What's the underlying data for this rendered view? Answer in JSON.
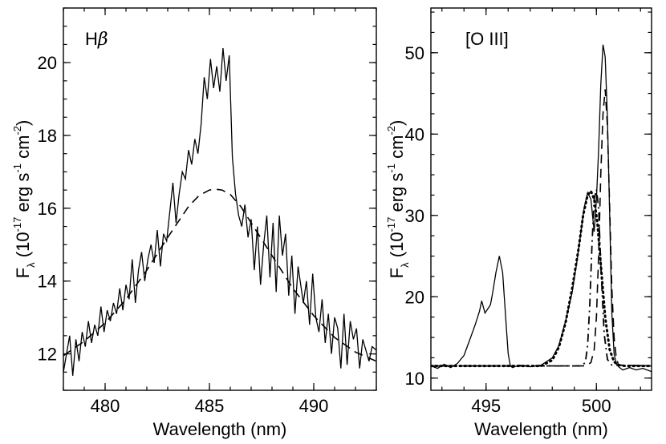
{
  "chart_data": [
    {
      "type": "line",
      "annotation": "Hβ",
      "annotation_parts": [
        "H",
        "β"
      ],
      "xlabel": "Wavelength (nm)",
      "ylabel": {
        "base": "F",
        "sub": "λ",
        "pre": " (10",
        "exp1": "-17",
        "mid1": " erg s",
        "exp2": "-1",
        "mid2": " cm",
        "exp3": "-2",
        "post": ")"
      },
      "xlim": [
        478,
        493
      ],
      "ylim": [
        11,
        21.5
      ],
      "xticks": [
        480,
        485,
        490
      ],
      "yticks": [
        12,
        14,
        16,
        18,
        20
      ],
      "grid": false,
      "series": [
        {
          "style": "solid",
          "x": [
            478.0,
            478.15,
            478.3,
            478.45,
            478.6,
            478.75,
            478.9,
            479.05,
            479.2,
            479.35,
            479.5,
            479.65,
            479.8,
            479.95,
            480.1,
            480.25,
            480.4,
            480.55,
            480.7,
            480.85,
            481.0,
            481.15,
            481.3,
            481.45,
            481.6,
            481.75,
            481.9,
            482.05,
            482.2,
            482.35,
            482.5,
            482.65,
            482.8,
            482.95,
            483.1,
            483.25,
            483.4,
            483.55,
            483.7,
            483.85,
            484.0,
            484.15,
            484.3,
            484.45,
            484.6,
            484.75,
            484.9,
            485.05,
            485.2,
            485.35,
            485.5,
            485.65,
            485.8,
            485.95,
            486.1,
            486.25,
            486.4,
            486.55,
            486.7,
            486.85,
            487.0,
            487.15,
            487.3,
            487.45,
            487.6,
            487.75,
            487.9,
            488.05,
            488.2,
            488.35,
            488.5,
            488.65,
            488.8,
            488.95,
            489.1,
            489.25,
            489.5,
            489.65,
            489.8,
            489.95,
            490.1,
            490.25,
            490.4,
            490.55,
            490.7,
            490.85,
            491.0,
            491.15,
            491.3,
            491.45,
            491.6,
            491.75,
            491.9,
            492.05,
            492.2,
            492.35,
            492.5,
            492.65,
            492.8,
            493.0
          ],
          "y": [
            11.5,
            12.0,
            12.5,
            11.4,
            12.4,
            11.8,
            12.6,
            12.2,
            12.9,
            12.3,
            12.8,
            12.5,
            13.3,
            12.6,
            13.2,
            12.9,
            13.4,
            13.1,
            13.8,
            13.2,
            13.9,
            13.5,
            14.6,
            13.4,
            14.3,
            14.8,
            14.0,
            14.6,
            15.0,
            14.5,
            15.4,
            14.4,
            15.3,
            15.1,
            15.9,
            16.7,
            15.6,
            16.4,
            17.0,
            16.8,
            17.6,
            17.2,
            17.9,
            17.5,
            18.3,
            19.6,
            19.0,
            20.1,
            19.3,
            19.9,
            19.2,
            20.4,
            19.5,
            20.2,
            17.4,
            16.4,
            15.8,
            15.5,
            16.1,
            15.2,
            15.7,
            14.3,
            15.5,
            13.9,
            15.0,
            15.8,
            14.1,
            15.6,
            13.7,
            15.8,
            14.7,
            15.3,
            13.6,
            14.7,
            13.1,
            14.4,
            13.4,
            14.0,
            12.8,
            14.2,
            13.0,
            12.6,
            13.5,
            12.3,
            13.1,
            12.0,
            13.0,
            12.7,
            11.6,
            13.1,
            11.7,
            12.9,
            12.4,
            12.7,
            11.6,
            12.4,
            12.1,
            11.8,
            12.2,
            12.1
          ]
        },
        {
          "style": "dashed",
          "x": [
            478.0,
            479.0,
            480.0,
            481.0,
            482.0,
            483.0,
            484.0,
            484.5,
            485.0,
            485.3,
            485.6,
            486.0,
            486.5,
            487.0,
            488.0,
            489.0,
            490.0,
            491.0,
            492.0,
            493.0
          ],
          "y": [
            11.95,
            12.35,
            12.85,
            13.5,
            14.3,
            15.2,
            16.05,
            16.35,
            16.5,
            16.52,
            16.5,
            16.38,
            16.05,
            15.6,
            14.7,
            13.8,
            13.05,
            12.45,
            12.05,
            11.8
          ]
        }
      ]
    },
    {
      "type": "line",
      "annotation": "[O III]",
      "annotation_parts": [
        "[O III]"
      ],
      "xlabel": "Wavelength (nm)",
      "ylabel": {
        "base": "F",
        "sub": "λ",
        "pre": " (10",
        "exp1": "-17",
        "mid1": " erg s",
        "exp2": "-1",
        "mid2": " cm",
        "exp3": "-2",
        "post": ")"
      },
      "xlim": [
        492.5,
        502.5
      ],
      "ylim": [
        8.5,
        55.5
      ],
      "xticks": [
        495,
        500
      ],
      "yticks": [
        10,
        20,
        30,
        40,
        50
      ],
      "grid": false,
      "series": [
        {
          "style": "solid",
          "x": [
            492.5,
            492.8,
            493.1,
            493.4,
            493.7,
            494.0,
            494.3,
            494.5,
            494.7,
            494.8,
            494.95,
            495.1,
            495.2,
            495.3,
            495.45,
            495.6,
            495.75,
            495.9,
            496.0,
            496.1,
            496.2,
            496.5,
            497.0,
            497.5,
            498.0,
            498.3,
            498.6,
            498.9,
            499.1,
            499.3,
            499.45,
            499.6,
            499.75,
            499.9,
            500.0,
            500.1,
            500.2,
            500.3,
            500.4,
            500.5,
            500.6,
            500.7,
            500.8,
            500.9,
            501.0,
            501.2,
            501.5,
            501.8,
            502.1,
            502.5
          ],
          "y": [
            11.5,
            11.2,
            11.7,
            11.3,
            11.8,
            12.8,
            15.0,
            16.5,
            18.2,
            19.5,
            18.0,
            18.6,
            19.0,
            20.5,
            23.0,
            25.0,
            23.0,
            17.0,
            13.0,
            11.5,
            11.3,
            11.6,
            11.4,
            11.6,
            12.5,
            14.0,
            17.0,
            20.5,
            24.0,
            28.0,
            31.0,
            32.8,
            32.0,
            28.0,
            32.0,
            38.0,
            46.0,
            51.0,
            49.5,
            42.0,
            30.0,
            18.0,
            13.0,
            11.8,
            11.4,
            11.0,
            11.3,
            11.0,
            11.2,
            10.8
          ]
        },
        {
          "style": "dashed",
          "x": [
            492.5,
            499.5,
            499.75,
            499.9,
            500.0,
            500.1,
            500.2,
            500.3,
            500.4,
            500.5,
            500.6,
            500.7,
            500.8,
            500.9,
            501.0,
            502.5
          ],
          "y": [
            11.5,
            11.5,
            11.9,
            13.5,
            17.5,
            25.0,
            35.0,
            42.5,
            45.5,
            41.0,
            31.0,
            21.0,
            15.0,
            12.5,
            11.6,
            11.5
          ]
        },
        {
          "style": "dotted",
          "x": [
            492.5,
            497.5,
            498.0,
            498.3,
            498.6,
            498.9,
            499.2,
            499.4,
            499.6,
            499.75,
            499.9,
            500.05,
            500.2,
            500.4,
            500.6,
            500.8,
            501.0,
            501.3,
            502.5
          ],
          "y": [
            11.5,
            11.5,
            12.2,
            13.8,
            16.8,
            21.0,
            26.0,
            30.0,
            32.5,
            33.0,
            32.0,
            29.0,
            24.0,
            17.5,
            13.5,
            12.0,
            11.6,
            11.5,
            11.5
          ]
        },
        {
          "style": "dashdot",
          "x": [
            492.5,
            499.3,
            499.5,
            499.6,
            499.7,
            499.8,
            499.9,
            500.0,
            500.1,
            500.2,
            500.35,
            500.5,
            500.7,
            502.5
          ],
          "y": [
            11.5,
            11.5,
            11.9,
            14.0,
            19.0,
            26.5,
            32.0,
            33.2,
            31.0,
            24.0,
            15.5,
            12.3,
            11.6,
            11.5
          ]
        }
      ]
    }
  ]
}
